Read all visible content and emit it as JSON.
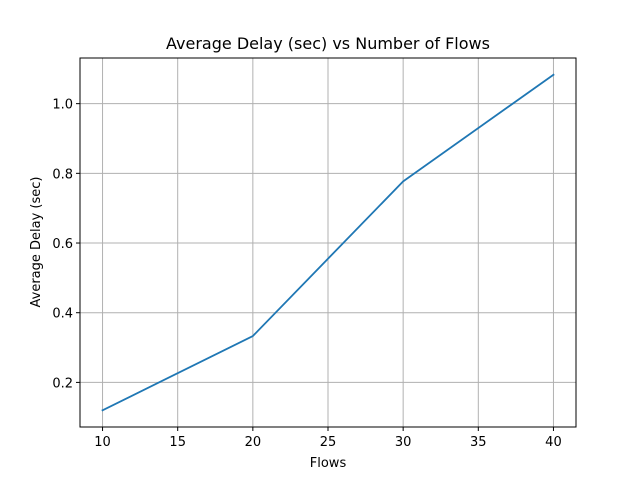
{
  "chart_data": {
    "type": "line",
    "title": "Average Delay (sec) vs Number of Flows",
    "xlabel": "Flows",
    "ylabel": "Average Delay (sec)",
    "x": [
      10,
      20,
      30,
      40
    ],
    "series": [
      {
        "values": [
          0.12,
          0.333,
          0.777,
          1.083
        ],
        "color": "#1f77b4"
      }
    ],
    "xlim": [
      8.5,
      41.5
    ],
    "ylim": [
      0.072,
      1.131
    ],
    "xticks": [
      10,
      15,
      20,
      25,
      30,
      35,
      40
    ],
    "xtick_labels": [
      "10",
      "15",
      "20",
      "25",
      "30",
      "35",
      "40"
    ],
    "yticks": [
      0.2,
      0.4,
      0.6,
      0.8,
      1.0
    ],
    "ytick_labels": [
      "0.2",
      "0.4",
      "0.6",
      "0.8",
      "1.0"
    ],
    "grid": true,
    "grid_color": "#b0b0b0",
    "axis_color": "#000000"
  }
}
